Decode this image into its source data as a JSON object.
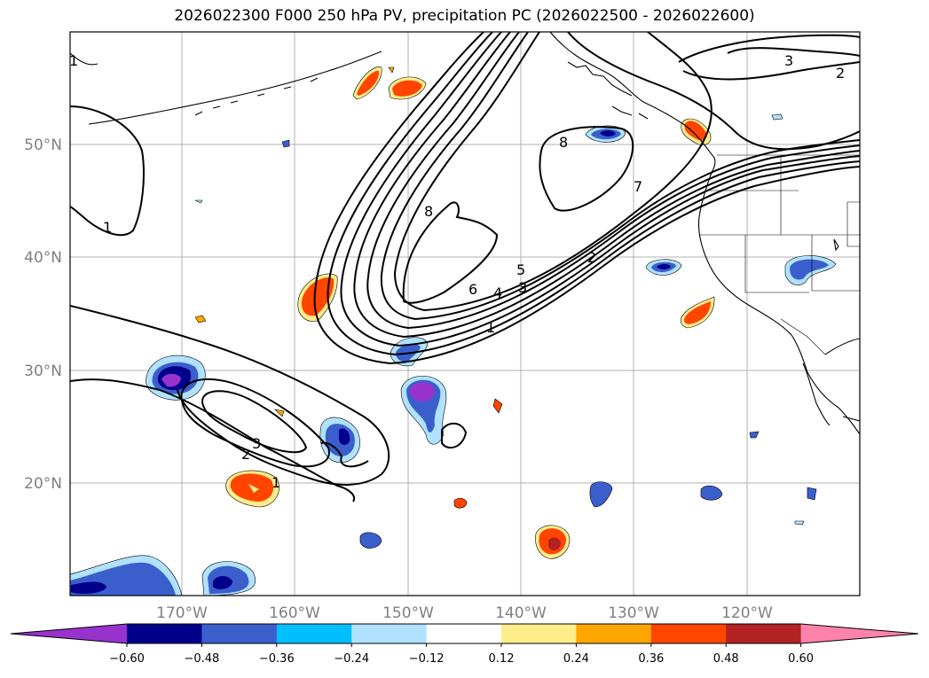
{
  "title": "2026022300 F000 250 hPa PV, precipitation PC (2026022500 - 2026022600)",
  "map": {
    "lat_labels": [
      "50°N",
      "40°N",
      "30°N",
      "20°N"
    ],
    "lon_labels": [
      "170°W",
      "160°W",
      "150°W",
      "140°W",
      "130°W",
      "120°W"
    ],
    "contour_labels": [
      "1",
      "1",
      "1",
      "1",
      "2",
      "2",
      "2",
      "3",
      "3",
      "3",
      "4",
      "5",
      "6",
      "7",
      "8",
      "8"
    ]
  },
  "colorbar": {
    "ticks": [
      "−0.60",
      "−0.48",
      "−0.36",
      "−0.24",
      "−0.12",
      "0.12",
      "0.24",
      "0.36",
      "0.48",
      "0.60"
    ],
    "colors": [
      "#9932cc",
      "#00008b",
      "#3a5fcd",
      "#00bfff",
      "#b0e2ff",
      "#ffffff",
      "#ffec8b",
      "#ffa500",
      "#ff4500",
      "#b22222",
      "#ff82ab"
    ]
  }
}
